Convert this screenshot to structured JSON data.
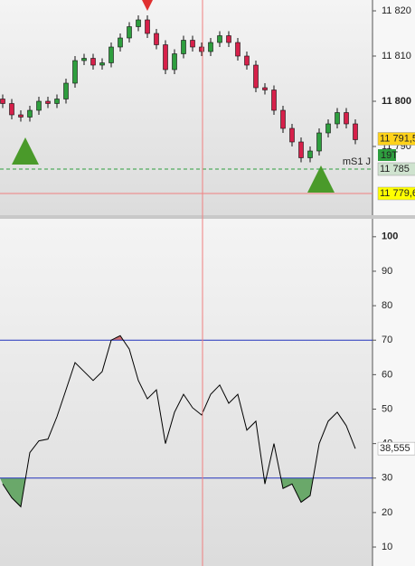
{
  "chart_data": [
    {
      "type": "candlestick",
      "candles": [
        [
          11800.5,
          11801.5,
          11798.5,
          11799.5
        ],
        [
          11799.5,
          11800.5,
          11796,
          11797
        ],
        [
          11797,
          11798,
          11795.5,
          11796.5
        ],
        [
          11796.5,
          11799,
          11795.5,
          11798
        ],
        [
          11798,
          11801,
          11797,
          11800
        ],
        [
          11800,
          11801,
          11798.5,
          11799.5
        ],
        [
          11799.5,
          11801.5,
          11798.5,
          11800.5
        ],
        [
          11800.5,
          11805,
          11799.5,
          11804
        ],
        [
          11804,
          11810,
          11803,
          11809
        ],
        [
          11809,
          11810.5,
          11808,
          11809.5
        ],
        [
          11809.5,
          11810.5,
          11807,
          11808
        ],
        [
          11808,
          11809.5,
          11807,
          11808.5
        ],
        [
          11808.5,
          11813,
          11807.5,
          11812
        ],
        [
          11812,
          11815,
          11811,
          11814
        ],
        [
          11814,
          11817.5,
          11813,
          11816.5
        ],
        [
          11816.5,
          11819,
          11815.5,
          11818
        ],
        [
          11818,
          11819,
          11814,
          11815
        ],
        [
          11815,
          11816,
          11811.5,
          11812.5
        ],
        [
          11812.5,
          11813.5,
          11806,
          11807
        ],
        [
          11807,
          11811.5,
          11806,
          11810.5
        ],
        [
          11810.5,
          11814.5,
          11809.5,
          11813.5
        ],
        [
          11813.5,
          11814.5,
          11811,
          11812
        ],
        [
          11812,
          11813,
          11810,
          11811
        ],
        [
          11811,
          11814,
          11810,
          11813
        ],
        [
          11813,
          11815.5,
          11812,
          11814.5
        ],
        [
          11814.5,
          11815.5,
          11812,
          11813
        ],
        [
          11813,
          11814,
          11809,
          11810
        ],
        [
          11810,
          11811,
          11807,
          11808
        ],
        [
          11808,
          11809,
          11802,
          11803
        ],
        [
          11803,
          11804,
          11801.5,
          11802.5
        ],
        [
          11802.5,
          11803.5,
          11797,
          11798
        ],
        [
          11798,
          11799,
          11793,
          11794
        ],
        [
          11794,
          11795,
          11790,
          11791
        ],
        [
          11791,
          11792,
          11786.5,
          11787.5
        ],
        [
          11787.5,
          11790,
          11786.5,
          11789
        ],
        [
          11789,
          11794,
          11788,
          11793
        ],
        [
          11793,
          11796,
          11792,
          11795
        ],
        [
          11795,
          11798.5,
          11794,
          11797.5
        ],
        [
          11797.5,
          11798.5,
          11794,
          11795
        ],
        [
          11795,
          11796,
          11790.5,
          11791.5
        ]
      ],
      "up_color": "#2e9e3e",
      "down_color": "#d6204a",
      "ylim": [
        11774.8,
        11822.4
      ],
      "yticks": [
        {
          "value": 11820,
          "label": "11 820"
        },
        {
          "value": 11810,
          "label": "11 810"
        },
        {
          "value": 11800,
          "label": "11 800"
        },
        {
          "value": 11790,
          "label": "11 790"
        }
      ],
      "levels": [
        {
          "value": 11791.5,
          "label": "11 791,5",
          "color": "#ffd21a"
        },
        {
          "value": 11785,
          "label": "11 785",
          "color": "#cfe3cf"
        },
        {
          "value": 11779.6,
          "label": "11 779,6",
          "color": "#ffff00"
        }
      ],
      "tag": "19T",
      "support_label": "mS1 J"
    },
    {
      "type": "line",
      "values": [
        28.3,
        24.3,
        21.7,
        37.4,
        40.8,
        41.3,
        47.8,
        55.6,
        63.5,
        60.9,
        58.3,
        60.9,
        70,
        71.3,
        67.4,
        58.3,
        53,
        55.6,
        40,
        49.1,
        54.3,
        50.4,
        48.3,
        54.3,
        57,
        51.7,
        54.3,
        43.9,
        46.5,
        28.3,
        40,
        27,
        28.3,
        23,
        24.9,
        40,
        46.5,
        49.1,
        45.2,
        38.555
      ],
      "color": "#000000",
      "ylim": [
        4.5,
        105.2
      ],
      "yticks": [
        100,
        90,
        80,
        70,
        60,
        50,
        40,
        30,
        20,
        10
      ],
      "levels": [
        70,
        30
      ],
      "last_label": {
        "value": 38.555,
        "label": "38,555"
      }
    }
  ]
}
